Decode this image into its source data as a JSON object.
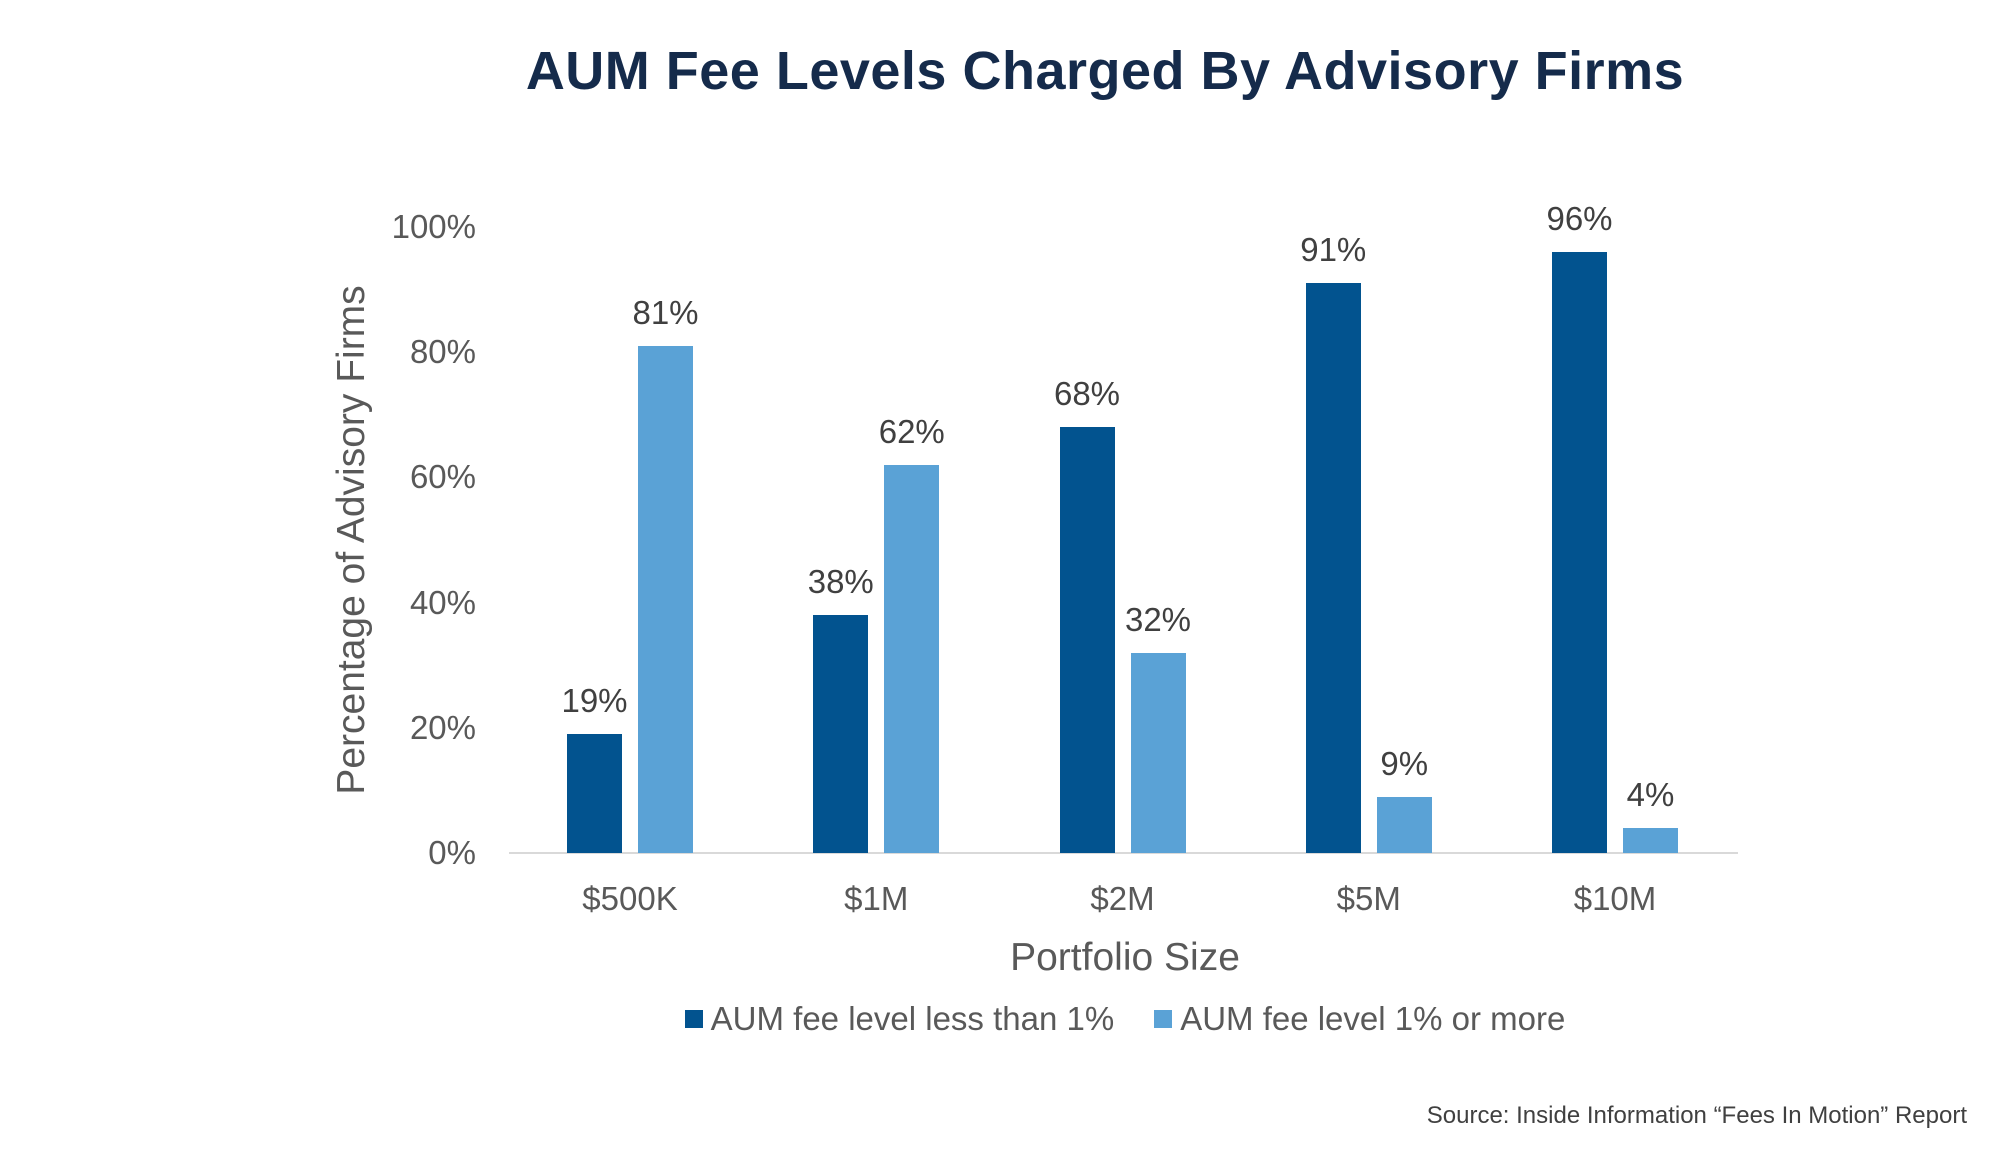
{
  "title": "AUM Fee Levels Charged By Advisory Firms",
  "source": "Source: Inside Information “Fees In Motion” Report",
  "colors": {
    "series1": "#02538f",
    "series2": "#5aa2d6",
    "title": "#152b4b",
    "axis_text": "#595959",
    "gridline": "#d9d9d9"
  },
  "chart_data": {
    "type": "bar",
    "title": "AUM Fee Levels Charged By Advisory Firms",
    "xlabel": "Portfolio Size",
    "ylabel": "Percentage of Advisory Firms",
    "ylim": [
      0,
      100
    ],
    "yticks": [
      "0%",
      "20%",
      "40%",
      "60%",
      "80%",
      "100%"
    ],
    "grid": false,
    "legend_position": "bottom",
    "categories": [
      "$500K",
      "$1M",
      "$2M",
      "$5M",
      "$10M"
    ],
    "series": [
      {
        "name": "AUM fee level less than 1%",
        "values": [
          19,
          38,
          68,
          91,
          96
        ],
        "labels": [
          "19%",
          "38%",
          "68%",
          "91%",
          "96%"
        ],
        "color": "#02538f"
      },
      {
        "name": "AUM fee level 1% or more",
        "values": [
          81,
          62,
          32,
          9,
          4
        ],
        "labels": [
          "81%",
          "62%",
          "32%",
          "9%",
          "4%"
        ],
        "color": "#5aa2d6"
      }
    ]
  }
}
